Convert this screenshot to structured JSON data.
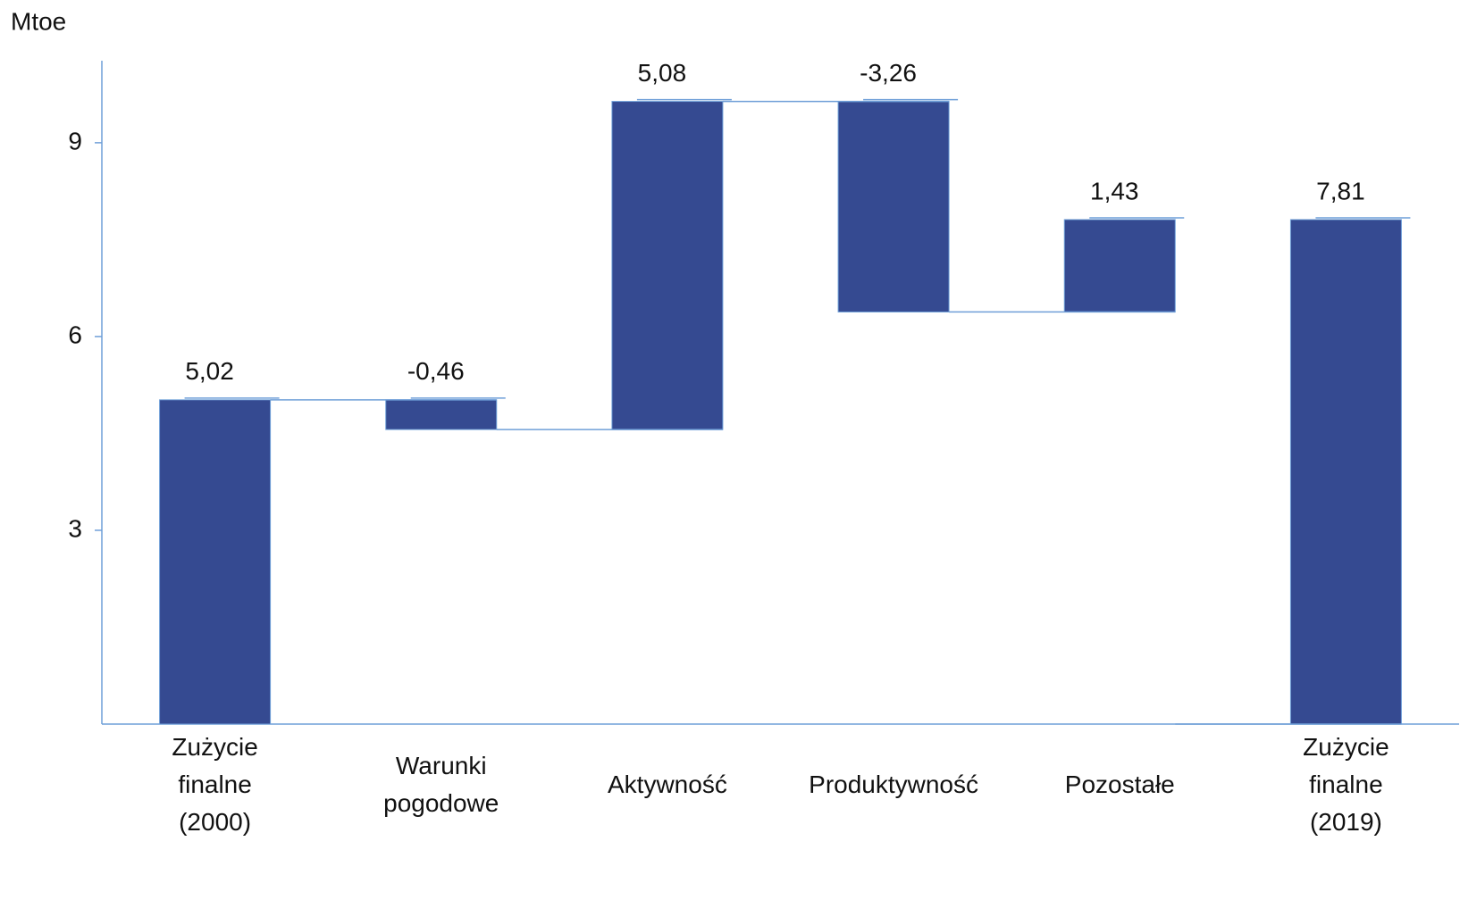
{
  "chart_data": {
    "type": "waterfall",
    "y_axis_label": "Mtoe",
    "categories": [
      "Zużycie finalne (2000)",
      "Warunki pogodowe",
      "Aktywność",
      "Produktywność",
      "Pozostałe",
      "Zużycie finalne (2019)"
    ],
    "values": [
      5.02,
      -0.46,
      5.08,
      -3.26,
      1.43,
      7.81
    ],
    "value_labels": [
      "5,02",
      "-0,46",
      "5,08",
      "-3,26",
      "1,43",
      "7,81"
    ],
    "totals": [
      true,
      false,
      false,
      false,
      false,
      true
    ],
    "color": "#354a91",
    "connector_color": "#6f9fd8",
    "ylim": [
      0,
      10.27
    ],
    "yticks": [
      3,
      6,
      9
    ],
    "grid": false
  }
}
